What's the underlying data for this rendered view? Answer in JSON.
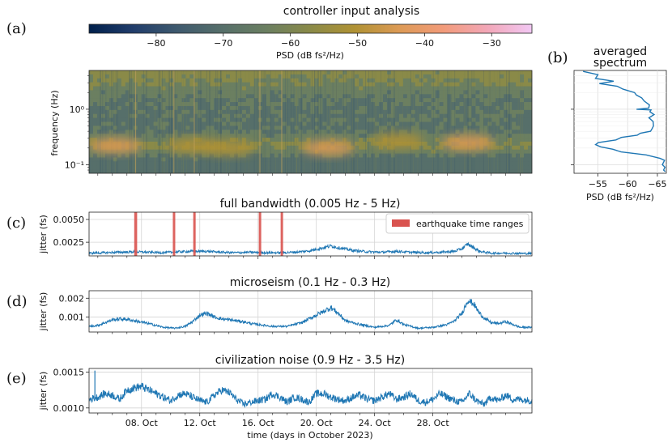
{
  "figure": {
    "title": "controller input analysis",
    "panel_labels": [
      "(a)",
      "(b)",
      "(c)",
      "(d)",
      "(e)"
    ],
    "xlabel": "time (days in October 2023)",
    "x_ticks": [
      "08. Oct",
      "12. Oct",
      "16. Oct",
      "20. Oct",
      "24. Oct",
      "28. Oct"
    ]
  },
  "chart_data": [
    {
      "id": "a",
      "type": "heatmap",
      "title": "",
      "xlabel": "",
      "ylabel": "frequency (Hz)",
      "y_scale": "log",
      "y_ticks": [
        "10⁻¹",
        "10⁰"
      ],
      "x_range_days": [
        4.4,
        34.8
      ],
      "y_range_hz": [
        0.07,
        5
      ],
      "colorbar": {
        "label": "PSD (dB fs²/Hz)",
        "ticks": [
          -80,
          -70,
          -60,
          -50,
          -40,
          -30
        ],
        "tick_labels": [
          "−80",
          "−70",
          "−60",
          "−50",
          "−40",
          "−30"
        ],
        "range": [
          -90,
          -24
        ],
        "colormap": [
          "#00204c",
          "#213d6b",
          "#3f5a6e",
          "#566f6a",
          "#6b7f61",
          "#8a8a48",
          "#b09234",
          "#dc9a55",
          "#f29b7a",
          "#f2a7b8",
          "#f2c8f4"
        ]
      },
      "hotspots": [
        {
          "day": 6.2,
          "freq": 0.22,
          "level": -47
        },
        {
          "day": 11.5,
          "freq": 0.22,
          "level": -48
        },
        {
          "day": 14.0,
          "freq": 0.2,
          "level": -52
        },
        {
          "day": 20.8,
          "freq": 0.2,
          "level": -43
        },
        {
          "day": 25.6,
          "freq": 0.27,
          "level": -50
        },
        {
          "day": 30.4,
          "freq": 0.25,
          "level": -44
        }
      ]
    },
    {
      "id": "b",
      "type": "line",
      "title": "averaged spectrum",
      "xlabel": "PSD (dB fs²/Hz)",
      "x_ticks": [
        -55,
        -60,
        -65
      ],
      "x_tick_labels": [
        "−55",
        "−60",
        "−65"
      ],
      "xlim": [
        -51,
        -66.5
      ],
      "y_scale": "log",
      "ylim_hz": [
        0.07,
        5
      ],
      "series": [
        {
          "name": "averaged spectrum",
          "freq": [
            4.8,
            4.2,
            3.6,
            3.2,
            2.9,
            2.6,
            2.3,
            2.0,
            1.8,
            1.6,
            1.4,
            1.2,
            1.05,
            1.0,
            0.97,
            0.9,
            0.8,
            0.7,
            0.6,
            0.5,
            0.45,
            0.4,
            0.37,
            0.34,
            0.31,
            0.28,
            0.25,
            0.23,
            0.21,
            0.19,
            0.17,
            0.15,
            0.13,
            0.12,
            0.1,
            0.09,
            0.08,
            0.075
          ],
          "psd": [
            -53.0,
            -54.5,
            -55.0,
            -57.5,
            -55.5,
            -58.0,
            -59.5,
            -61.0,
            -61.5,
            -62.0,
            -63.0,
            -63.5,
            -64.0,
            -61.0,
            -64.5,
            -63.5,
            -64.5,
            -63.5,
            -64.5,
            -64.0,
            -64.5,
            -63.5,
            -62.5,
            -61.5,
            -59.5,
            -57.5,
            -55.5,
            -54.5,
            -55.5,
            -57.0,
            -59.5,
            -63.0,
            -65.5,
            -66.0,
            -66.2,
            -66.0,
            -66.2,
            -66.0
          ]
        }
      ]
    },
    {
      "id": "c",
      "type": "line",
      "title": "full bandwidth (0.005 Hz - 5 Hz)",
      "ylabel": "jitter (fs)",
      "y_ticks": [
        0.0025,
        0.005
      ],
      "y_tick_labels": [
        "0.0025",
        "0.0050"
      ],
      "ylim": [
        0.001,
        0.0058
      ],
      "legend": {
        "label": "earthquake time ranges",
        "placement": "right"
      },
      "earthquakes": [
        {
          "start": 7.5,
          "end": 7.7
        },
        {
          "start": 10.15,
          "end": 10.3
        },
        {
          "start": 11.55,
          "end": 11.7
        },
        {
          "start": 16.05,
          "end": 16.2
        },
        {
          "start": 17.55,
          "end": 17.7
        }
      ],
      "series": [
        {
          "name": "jitter",
          "day": [
            4.4,
            5.5,
            6.5,
            7.5,
            8.5,
            9.5,
            10.5,
            11.5,
            12.5,
            13.5,
            14.5,
            15.5,
            16.5,
            17.5,
            18.5,
            19.5,
            20.5,
            21.0,
            21.5,
            22.5,
            23.5,
            24.5,
            25.5,
            26.5,
            27.5,
            28.5,
            29.5,
            30.0,
            30.4,
            30.8,
            31.2,
            32.0,
            33.0,
            34.8
          ],
          "value": [
            0.0013,
            0.00135,
            0.0014,
            0.00145,
            0.0014,
            0.00135,
            0.00145,
            0.0015,
            0.0015,
            0.0014,
            0.00135,
            0.0014,
            0.00135,
            0.00135,
            0.0014,
            0.00155,
            0.0019,
            0.0021,
            0.0019,
            0.0016,
            0.00145,
            0.0014,
            0.0015,
            0.0014,
            0.00135,
            0.0014,
            0.0015,
            0.0018,
            0.0023,
            0.0019,
            0.0015,
            0.0013,
            0.0013,
            0.00125
          ]
        }
      ]
    },
    {
      "id": "d",
      "type": "line",
      "title": "microseism (0.1 Hz - 0.3 Hz)",
      "ylabel": "jitter (fs)",
      "y_ticks": [
        0.001,
        0.002
      ],
      "y_tick_labels": [
        "0.001",
        "0.002"
      ],
      "ylim": [
        0.0002,
        0.0024
      ],
      "series": [
        {
          "name": "jitter",
          "day": [
            4.4,
            5.0,
            5.5,
            6.0,
            6.5,
            7.0,
            7.5,
            8.5,
            9.5,
            10.3,
            11.0,
            11.5,
            12.0,
            12.5,
            13.0,
            13.5,
            14.0,
            14.5,
            15.0,
            15.5,
            16.0,
            16.5,
            17.0,
            18.0,
            19.0,
            19.5,
            20.0,
            20.5,
            21.0,
            21.5,
            22.0,
            23.0,
            24.0,
            25.0,
            25.5,
            26.0,
            27.0,
            28.0,
            29.0,
            29.5,
            30.0,
            30.4,
            30.8,
            31.2,
            31.6,
            32.0,
            32.5,
            33.0,
            33.5,
            34.0,
            34.8
          ],
          "value": [
            0.0005,
            0.00055,
            0.0007,
            0.00085,
            0.0009,
            0.00088,
            0.0008,
            0.00065,
            0.00045,
            0.0004,
            0.0005,
            0.00075,
            0.0011,
            0.0012,
            0.001,
            0.0009,
            0.00085,
            0.0008,
            0.00075,
            0.00065,
            0.0006,
            0.00055,
            0.0005,
            0.0005,
            0.0007,
            0.0009,
            0.0011,
            0.0013,
            0.0015,
            0.0012,
            0.0008,
            0.0006,
            0.00045,
            0.00055,
            0.00085,
            0.0006,
            0.0004,
            0.00045,
            0.0006,
            0.0008,
            0.0012,
            0.0019,
            0.0017,
            0.0012,
            0.0009,
            0.0007,
            0.00065,
            0.00075,
            0.0006,
            0.00045,
            0.00045
          ]
        }
      ]
    },
    {
      "id": "e",
      "type": "line",
      "title": "civilization noise (0.9 Hz - 3.5 Hz)",
      "ylabel": "jitter (fs)",
      "y_ticks": [
        0.001,
        0.0015
      ],
      "y_tick_labels": [
        "0.0010",
        "0.0015"
      ],
      "ylim": [
        0.00093,
        0.00155
      ],
      "spike": {
        "day": 4.8,
        "value": 0.00152
      },
      "series": [
        {
          "name": "jitter",
          "day": [
            4.4,
            5.0,
            5.5,
            6.0,
            6.5,
            7.0,
            7.5,
            8.0,
            8.5,
            9.0,
            9.5,
            10.0,
            10.5,
            11.0,
            11.5,
            12.0,
            12.5,
            13.0,
            13.5,
            14.0,
            14.5,
            15.0,
            15.5,
            16.0,
            16.5,
            17.0,
            17.5,
            18.0,
            18.5,
            19.0,
            19.5,
            20.0,
            20.5,
            21.0,
            21.5,
            22.0,
            22.5,
            23.0,
            23.5,
            24.0,
            24.5,
            25.0,
            25.5,
            26.0,
            26.5,
            27.0,
            27.5,
            28.0,
            28.5,
            29.0,
            29.5,
            30.0,
            30.5,
            31.0,
            31.5,
            32.0,
            32.5,
            33.0,
            33.5,
            34.0,
            34.8
          ],
          "value": [
            0.00112,
            0.00115,
            0.0012,
            0.00118,
            0.00112,
            0.00125,
            0.00128,
            0.0013,
            0.00125,
            0.0012,
            0.00115,
            0.0011,
            0.00118,
            0.0012,
            0.00115,
            0.0011,
            0.00108,
            0.00118,
            0.00125,
            0.00122,
            0.00112,
            0.00105,
            0.00108,
            0.0011,
            0.00112,
            0.0012,
            0.00115,
            0.00108,
            0.00115,
            0.00112,
            0.00108,
            0.0012,
            0.0012,
            0.00115,
            0.00112,
            0.0011,
            0.00115,
            0.00118,
            0.00112,
            0.0011,
            0.00115,
            0.0012,
            0.00112,
            0.00115,
            0.0012,
            0.0011,
            0.00108,
            0.00112,
            0.0012,
            0.00115,
            0.0011,
            0.00108,
            0.0012,
            0.0011,
            0.00105,
            0.00115,
            0.0011,
            0.00118,
            0.00112,
            0.00112,
            0.0011
          ]
        }
      ]
    }
  ]
}
